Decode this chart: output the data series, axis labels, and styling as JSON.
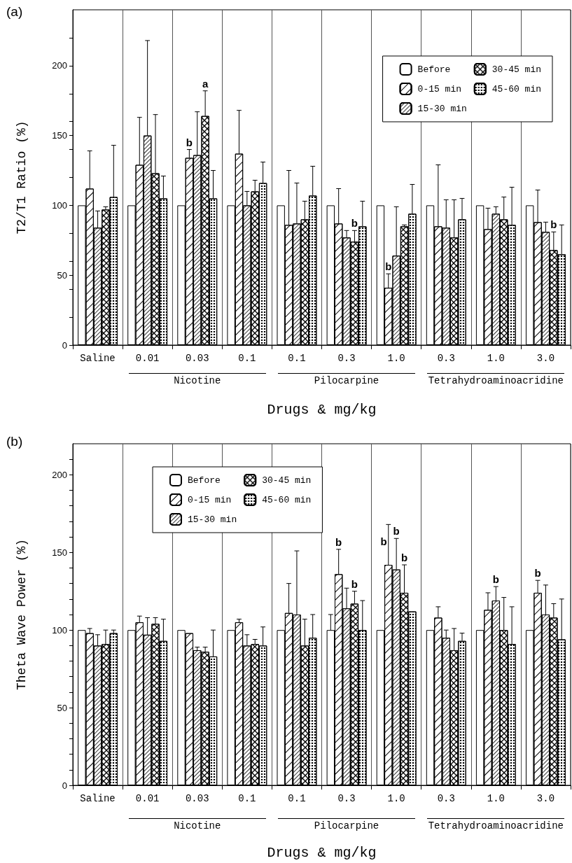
{
  "chart_data": [
    {
      "type": "bar",
      "title": "(a)",
      "xlabel": "Drugs & mg/kg",
      "ylabel": "T2/T1 Ratio (%)",
      "categories": [
        "Saline",
        "0.01",
        "0.03",
        "0.1",
        "0.1",
        "0.3",
        "1.0",
        "0.3",
        "1.0",
        "3.0"
      ],
      "annotations": [
        "Nicotine",
        "Pilocarpine",
        "Tetrahydroaminoacridine"
      ],
      "ylim": [
        0,
        240
      ],
      "yticks": [
        0,
        {
          "value": 20,
          "label": null
        },
        {
          "value": 40,
          "label": null
        },
        50,
        {
          "value": 60,
          "label": null
        },
        {
          "value": 80,
          "label": null
        },
        100,
        {
          "value": 120,
          "label": null
        },
        {
          "value": 140,
          "label": null
        },
        150,
        {
          "value": 160,
          "label": null
        },
        {
          "value": 180,
          "label": null
        },
        200,
        {
          "value": 220,
          "label": null
        }
      ],
      "grid": "x",
      "legend": "top right",
      "series": [
        {
          "name": "Before",
          "color": "#ffffff",
          "values": [
            100,
            100,
            100,
            100,
            100,
            100,
            100,
            100,
            100,
            100
          ]
        },
        {
          "name": "0-15 min",
          "color": "#ffffff",
          "values": [
            112,
            129,
            134,
            137,
            86,
            87,
            41,
            85,
            83,
            88
          ],
          "errors": [
            [
              112,
              139
            ],
            [
              129,
              163
            ],
            [
              134,
              140
            ],
            [
              137,
              168
            ],
            [
              86,
              125
            ],
            [
              87,
              112
            ],
            [
              41,
              51
            ],
            [
              85,
              129
            ],
            [
              83,
              98
            ],
            [
              88,
              111
            ]
          ],
          "value_labels": [
            null,
            null,
            "b",
            null,
            null,
            null,
            "b",
            null,
            null,
            null
          ]
        },
        {
          "name": "15-30 min",
          "color": "#ffffff",
          "values": [
            84,
            150,
            136,
            100,
            87,
            77,
            64,
            84,
            94,
            81
          ],
          "errors": [
            [
              84,
              96
            ],
            [
              150,
              218
            ],
            [
              136,
              167
            ],
            [
              100,
              110
            ],
            [
              87,
              116
            ],
            [
              77,
              82
            ],
            [
              64,
              99
            ],
            [
              84,
              104
            ],
            [
              94,
              99
            ],
            [
              81,
              88
            ]
          ]
        },
        {
          "name": "30-45 min",
          "color": "#ffffff",
          "values": [
            97,
            123,
            164,
            110,
            90,
            74,
            85,
            77,
            90,
            68
          ],
          "errors": [
            [
              97,
              99
            ],
            [
              123,
              165
            ],
            [
              164,
              182
            ],
            [
              110,
              118
            ],
            [
              90,
              103
            ],
            [
              74,
              82
            ],
            [
              85,
              86
            ],
            [
              77,
              104
            ],
            [
              90,
              106
            ],
            [
              68,
              81
            ]
          ],
          "value_labels": [
            null,
            null,
            "a",
            null,
            null,
            "b",
            null,
            null,
            null,
            "b"
          ]
        },
        {
          "name": "45-60 min",
          "color": "#ffffff",
          "values": [
            106,
            105,
            105,
            116,
            107,
            85,
            94,
            90,
            86,
            65
          ],
          "errors": [
            [
              106,
              143
            ],
            [
              105,
              121
            ],
            [
              105,
              125
            ],
            [
              116,
              131
            ],
            [
              107,
              128
            ],
            [
              85,
              103
            ],
            [
              94,
              115
            ],
            [
              90,
              105
            ],
            [
              86,
              113
            ],
            [
              65,
              86
            ]
          ]
        }
      ]
    },
    {
      "type": "bar",
      "title": "(b)",
      "xlabel": "Drugs & mg/kg",
      "ylabel": "Theta Wave Power (%)",
      "categories": [
        "Saline",
        "0.01",
        "0.03",
        "0.1",
        "0.1",
        "0.3",
        "1.0",
        "0.3",
        "1.0",
        "3.0"
      ],
      "annotations": [
        "Nicotine",
        "Pilocarpine",
        "Tetrahydroaminoacridine"
      ],
      "ylim": [
        0,
        220
      ],
      "yticks": [
        0,
        {
          "value": 10,
          "label": null
        },
        {
          "value": 20,
          "label": null
        },
        {
          "value": 30,
          "label": null
        },
        {
          "value": 40,
          "label": null
        },
        50,
        {
          "value": 60,
          "label": null
        },
        {
          "value": 70,
          "label": null
        },
        {
          "value": 80,
          "label": null
        },
        {
          "value": 90,
          "label": null
        },
        100,
        {
          "value": 110,
          "label": null
        },
        {
          "value": 120,
          "label": null
        },
        {
          "value": 130,
          "label": null
        },
        {
          "value": 140,
          "label": null
        },
        150,
        {
          "value": 160,
          "label": null
        },
        {
          "value": 170,
          "label": null
        },
        {
          "value": 180,
          "label": null
        },
        {
          "value": 190,
          "label": null
        },
        200,
        {
          "value": 210,
          "label": null
        }
      ],
      "grid": "x",
      "legend": "top left",
      "series": [
        {
          "name": "Before",
          "color": "#ffffff",
          "values": [
            100,
            100,
            100,
            100,
            100,
            100,
            100,
            100,
            100,
            100
          ],
          "errors": [
            null,
            null,
            null,
            null,
            null,
            [
              100,
              110
            ],
            null,
            null,
            null,
            null
          ]
        },
        {
          "name": "0-15 min",
          "color": "#ffffff",
          "values": [
            98,
            105,
            98,
            105,
            111,
            136,
            142,
            108,
            113,
            124
          ],
          "errors": [
            [
              98,
              101
            ],
            [
              105,
              109
            ],
            null,
            [
              105,
              107
            ],
            [
              111,
              130
            ],
            [
              136,
              152
            ],
            [
              142,
              168
            ],
            [
              108,
              115
            ],
            [
              113,
              124
            ],
            [
              124,
              132
            ]
          ],
          "value_labels": [
            null,
            null,
            null,
            null,
            null,
            "b",
            "b",
            null,
            null,
            "b"
          ]
        },
        {
          "name": "15-30 min",
          "color": "#ffffff",
          "values": [
            90,
            97,
            87,
            90,
            110,
            114,
            139,
            95,
            119,
            110
          ],
          "errors": [
            [
              90,
              97
            ],
            [
              97,
              108
            ],
            [
              87,
              89
            ],
            [
              90,
              97
            ],
            [
              110,
              151
            ],
            [
              114,
              127
            ],
            [
              139,
              159
            ],
            [
              95,
              100
            ],
            [
              119,
              128
            ],
            [
              110,
              129
            ]
          ],
          "value_labels": [
            null,
            null,
            null,
            null,
            null,
            null,
            "b",
            null,
            "b",
            null
          ]
        },
        {
          "name": "30-45 min",
          "color": "#ffffff",
          "values": [
            91,
            104,
            86,
            91,
            90,
            117,
            124,
            87,
            100,
            108
          ],
          "errors": [
            [
              91,
              100
            ],
            [
              104,
              108
            ],
            [
              86,
              89
            ],
            [
              91,
              94
            ],
            [
              90,
              107
            ],
            [
              117,
              125
            ],
            [
              124,
              142
            ],
            [
              87,
              101
            ],
            [
              100,
              121
            ],
            [
              108,
              117
            ]
          ],
          "value_labels": [
            null,
            null,
            null,
            null,
            null,
            "b",
            "b",
            null,
            null,
            null
          ]
        },
        {
          "name": "45-60 min",
          "color": "#ffffff",
          "values": [
            98,
            93,
            83,
            90,
            95,
            100,
            112,
            93,
            91,
            94
          ],
          "errors": [
            [
              98,
              100
            ],
            [
              93,
              107
            ],
            [
              83,
              100
            ],
            [
              90,
              102
            ],
            [
              95,
              110
            ],
            [
              100,
              119
            ],
            null,
            [
              93,
              98
            ],
            [
              91,
              115
            ],
            [
              94,
              120
            ]
          ]
        }
      ]
    }
  ]
}
